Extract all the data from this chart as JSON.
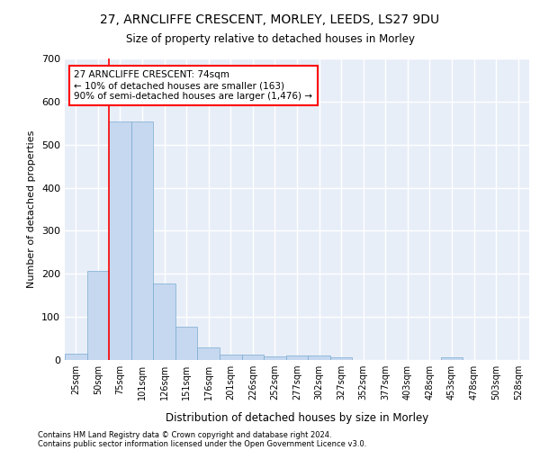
{
  "title1": "27, ARNCLIFFE CRESCENT, MORLEY, LEEDS, LS27 9DU",
  "title2": "Size of property relative to detached houses in Morley",
  "xlabel": "Distribution of detached houses by size in Morley",
  "ylabel": "Number of detached properties",
  "bin_labels": [
    "25sqm",
    "50sqm",
    "75sqm",
    "101sqm",
    "126sqm",
    "151sqm",
    "176sqm",
    "201sqm",
    "226sqm",
    "252sqm",
    "277sqm",
    "302sqm",
    "327sqm",
    "352sqm",
    "377sqm",
    "403sqm",
    "428sqm",
    "453sqm",
    "478sqm",
    "503sqm",
    "528sqm"
  ],
  "bar_values": [
    14,
    207,
    553,
    553,
    178,
    78,
    30,
    13,
    12,
    8,
    10,
    10,
    6,
    0,
    0,
    0,
    0,
    6,
    0,
    0,
    0
  ],
  "bar_color": "#c5d8f0",
  "bar_edge_color": "#7aaad0",
  "annotation_title": "27 ARNCLIFFE CRESCENT: 74sqm",
  "annotation_line1": "← 10% of detached houses are smaller (163)",
  "annotation_line2": "90% of semi-detached houses are larger (1,476) →",
  "ylim": [
    0,
    700
  ],
  "yticks": [
    0,
    100,
    200,
    300,
    400,
    500,
    600,
    700
  ],
  "footnote1": "Contains HM Land Registry data © Crown copyright and database right 2024.",
  "footnote2": "Contains public sector information licensed under the Open Government Licence v3.0.",
  "plot_bg_color": "#e8eef8"
}
